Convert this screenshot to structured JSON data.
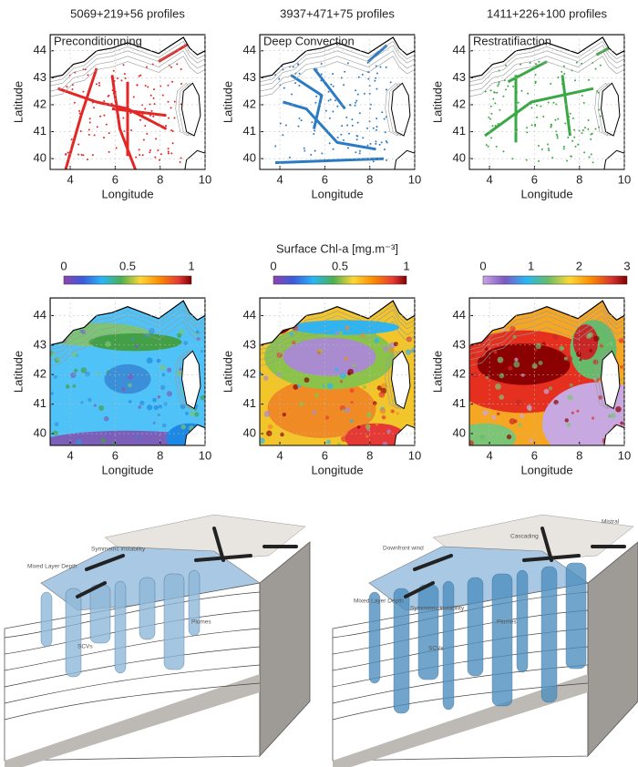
{
  "profile_panels": [
    {
      "count": "5069+219+56 profiles",
      "label": "Preconditionning",
      "color": "#e32626"
    },
    {
      "count": "3937+471+75 profiles",
      "label": "Deep Convection",
      "color": "#2b7bc4"
    },
    {
      "count": "1411+226+100 profiles",
      "label": "Restratifiaction",
      "color": "#3aa845"
    }
  ],
  "map_axes": {
    "xlabel": "Longitude",
    "ylabel": "Latitude",
    "xticks": [
      4,
      6,
      8,
      10
    ],
    "yticks": [
      40,
      41,
      42,
      43,
      44
    ]
  },
  "chl": {
    "title": "Surface Chl-a [mg.m⁻³]",
    "colorbars": [
      [
        0,
        0.5,
        1
      ],
      [
        0,
        0.5,
        1
      ],
      [
        0,
        1,
        2,
        3
      ]
    ]
  },
  "diagrams": [
    {
      "labels": [
        "Symmetric instability",
        "Mixed Layer Depth",
        "Plumes",
        "SCVs"
      ]
    },
    {
      "labels": [
        "Mistral",
        "Downfront wind",
        "Cascading",
        "Mixed Layer Depth",
        "Symmetric instability",
        "Plumes",
        "SCVs"
      ]
    }
  ]
}
